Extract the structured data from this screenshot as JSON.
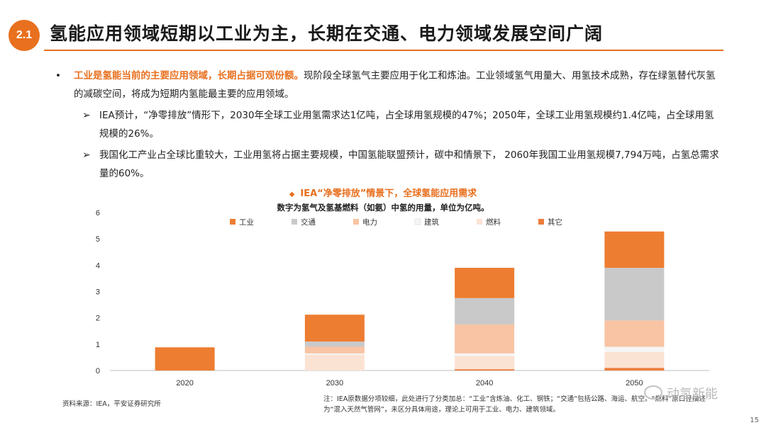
{
  "header": {
    "section_number": "2.1",
    "title": "氢能应用领域短期以工业为主，长期在交通、电力领域发展空间广阔"
  },
  "bullets": {
    "main_dot": "•",
    "main_highlight": "工业是氢能当前的主要应用领域，长期占据可观份额。",
    "main_text": "现阶段全球氢气主要应用于化工和炼油。工业领域氢气用量大、用氢技术成熟，存在绿氢替代灰氢的减碳空间，将成为短期内氢能最主要的应用领域。",
    "arrow": "➢",
    "sub1": "IEA预计，“净零排放”情形下，2030年全球工业用氢需求达1亿吨，占全球用氢规模的47%；2050年，全球工业用氢规模约1.4亿吨，占全球用氢规模的26%。",
    "sub2": "我国化工产业占全球比重较大，工业用氢将占据主要规模，中国氢能联盟预计，碳中和情景下， 2060年我国工业用氢规模7,794万吨，占氢总需求量的60%。"
  },
  "chart_heading": {
    "diamond": "◆",
    "title": "IEA“净零排放”情景下，全球氢能应用需求",
    "subtitle": "数字为氢气及氢基燃料（如氨）中氢的用量，单位为亿吨。"
  },
  "chart_data": {
    "type": "bar",
    "stacked": true,
    "categories": [
      "2020",
      "2030",
      "2040",
      "2050"
    ],
    "ylim": [
      0,
      6
    ],
    "yticks": [
      "0",
      "1",
      "2",
      "3",
      "4",
      "5",
      "6"
    ],
    "legend_position": "top",
    "grid": false,
    "series": [
      {
        "name": "其它",
        "color": "#ec7c3a",
        "values": [
          0.0,
          0.0,
          0.05,
          0.1
        ]
      },
      {
        "name": "燃料",
        "color": "#fbe3d4",
        "values": [
          0.0,
          0.6,
          0.5,
          0.6
        ]
      },
      {
        "name": "建筑",
        "color": "#f5f5f5",
        "values": [
          0.0,
          0.05,
          0.1,
          0.2
        ]
      },
      {
        "name": "电力",
        "color": "#f8c4a4",
        "values": [
          0.0,
          0.25,
          1.1,
          1.0
        ]
      },
      {
        "name": "交通",
        "color": "#c9c9c9",
        "values": [
          0.0,
          0.2,
          1.0,
          2.0
        ]
      },
      {
        "name": "工业",
        "color": "#ed7d31",
        "values": [
          0.88,
          1.02,
          1.15,
          1.38
        ]
      }
    ],
    "legend_order": [
      "工业",
      "交通",
      "电力",
      "建筑",
      "燃料",
      "其它"
    ]
  },
  "footer": {
    "source": "资料来源：IEA，平安证券研究所",
    "note": "注：IEA原数据分项较细，此处进行了分类加总：“工业”含炼油、化工、钢铁；“交通”包括公路、海运、航空。“燃料”原口径描述为“混入天然气管网”，未区分具体用途，理论上可用于工业、电力、建筑领域。",
    "watermark": "动氢新能",
    "page_number": "15"
  }
}
